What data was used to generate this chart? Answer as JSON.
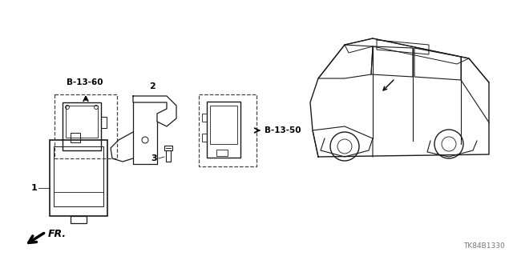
{
  "background_color": "#ffffff",
  "part_number_code": "TK84B1330",
  "label_b1360": "B-13-60",
  "label_b1350": "B-13-50",
  "label_fr": "FR.",
  "line_color": "#1a1a1a",
  "dashed_box_color": "#444444",
  "text_color": "#000000",
  "font_size_labels": 8,
  "font_size_ref": 7.5,
  "font_size_part": 6.5
}
